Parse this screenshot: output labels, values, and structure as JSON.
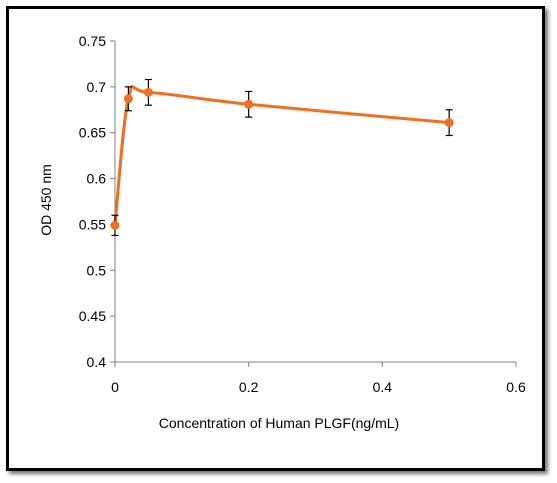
{
  "chart_data": {
    "type": "line",
    "title": "",
    "xlabel": "Concentration of Human PLGF(ng/mL)",
    "ylabel": "OD 450 nm",
    "xlim": [
      0,
      0.6
    ],
    "ylim": [
      0.4,
      0.75
    ],
    "x_ticks": [
      "0",
      "0.2",
      "0.4",
      "0.6"
    ],
    "y_ticks": [
      "0.4",
      "0.45",
      "0.5",
      "0.55",
      "0.6",
      "0.65",
      "0.7",
      "0.75"
    ],
    "grid": false,
    "legend": "none",
    "smoothed": true,
    "series": [
      {
        "color": "#f07020",
        "points": [
          {
            "x": 0,
            "y": 0.549,
            "err": 0.011
          },
          {
            "x": 0.02,
            "y": 0.687,
            "err": 0.013
          },
          {
            "x": 0.05,
            "y": 0.694,
            "err": 0.014
          },
          {
            "x": 0.2,
            "y": 0.681,
            "err": 0.014
          },
          {
            "x": 0.5,
            "y": 0.661,
            "err": 0.014
          }
        ]
      }
    ]
  }
}
